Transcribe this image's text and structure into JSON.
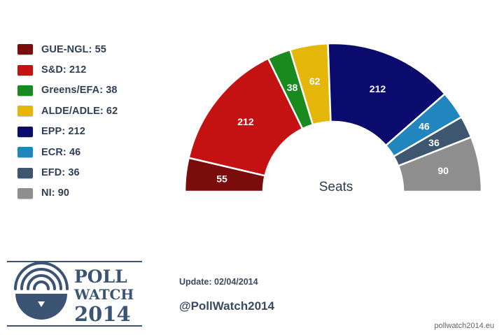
{
  "chart_data": {
    "type": "pie",
    "subtype": "half-donut",
    "center_label": "Seats",
    "series": [
      {
        "name": "GUE-NGL",
        "value": 55,
        "color": "#7a0c0c"
      },
      {
        "name": "S&D",
        "value": 212,
        "color": "#c41212"
      },
      {
        "name": "Greens/EFA",
        "value": 38,
        "color": "#198a1e"
      },
      {
        "name": "ALDE/ADLE",
        "value": 62,
        "color": "#e5b70b"
      },
      {
        "name": "EPP",
        "value": 212,
        "color": "#0b0b6e"
      },
      {
        "name": "ECR",
        "value": 46,
        "color": "#2186bd"
      },
      {
        "name": "EFD",
        "value": 36,
        "color": "#3f5670"
      },
      {
        "name": "NI",
        "value": 90,
        "color": "#8e8e8e"
      }
    ]
  },
  "legend": [
    {
      "label": "GUE-NGL: 55",
      "color": "#7a0c0c"
    },
    {
      "label": "S&D: 212",
      "color": "#c41212"
    },
    {
      "label": "Greens/EFA: 38",
      "color": "#198a1e"
    },
    {
      "label": "ALDE/ADLE: 62",
      "color": "#e5b70b"
    },
    {
      "label": "EPP: 212",
      "color": "#0b0b6e"
    },
    {
      "label": "ECR: 46",
      "color": "#2186bd"
    },
    {
      "label": "EFD: 36",
      "color": "#3f5670"
    },
    {
      "label": "NI: 90",
      "color": "#8e8e8e"
    }
  ],
  "logo": {
    "line1": "POLL",
    "line2": "WATCH",
    "line3": "2014",
    "color": "#3b5474"
  },
  "footer": {
    "update": "Update: 02/04/2014",
    "handle": "@PollWatch2014",
    "site": "pollwatch2014.eu"
  }
}
